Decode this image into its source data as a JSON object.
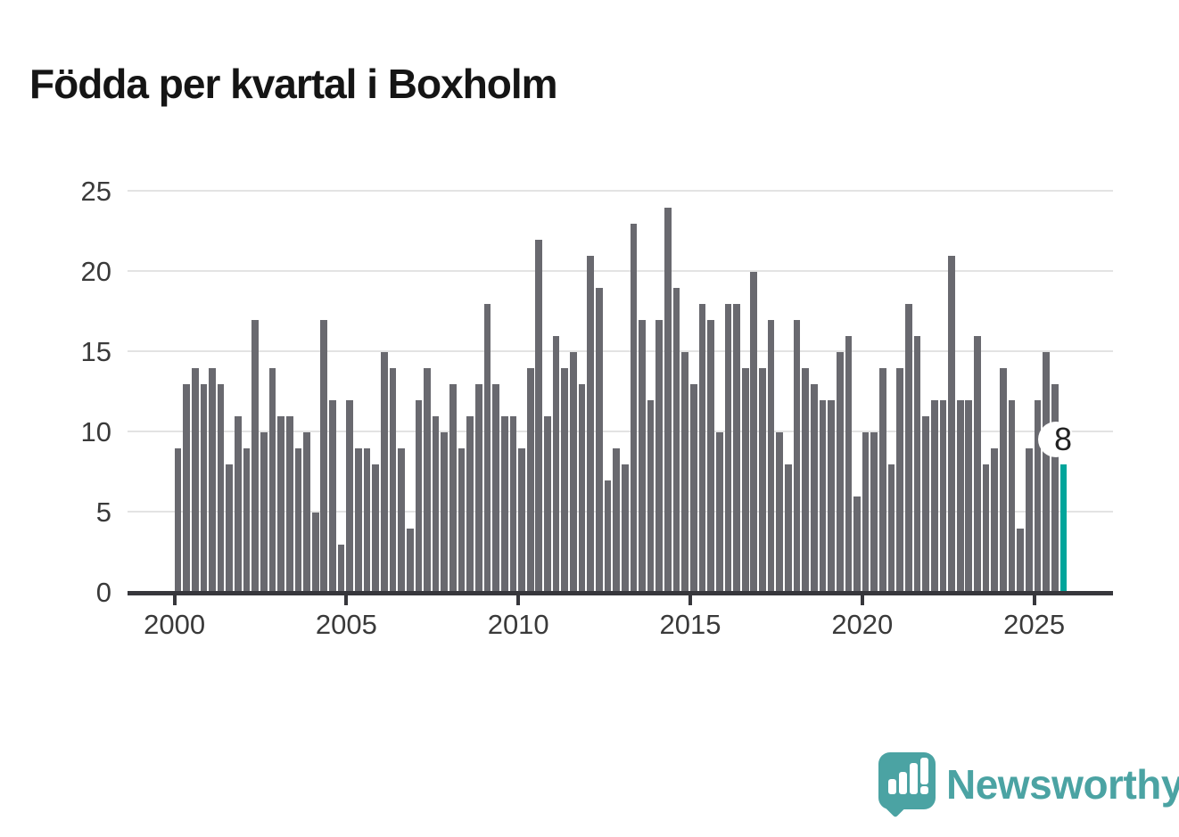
{
  "title": "Födda per kvartal i Boxholm",
  "brand": {
    "name": "Newsworthy"
  },
  "chart_data": {
    "type": "bar",
    "title": "Födda per kvartal i Boxholm",
    "x_labels": [
      "2000Q1",
      "2000Q2",
      "2000Q3",
      "2000Q4",
      "2001Q1",
      "2001Q2",
      "2001Q3",
      "2001Q4",
      "2002Q1",
      "2002Q2",
      "2002Q3",
      "2002Q4",
      "2003Q1",
      "2003Q2",
      "2003Q3",
      "2003Q4",
      "2004Q1",
      "2004Q2",
      "2004Q3",
      "2004Q4",
      "2005Q1",
      "2005Q2",
      "2005Q3",
      "2005Q4",
      "2006Q1",
      "2006Q2",
      "2006Q3",
      "2006Q4",
      "2007Q1",
      "2007Q2",
      "2007Q3",
      "2007Q4",
      "2008Q1",
      "2008Q2",
      "2008Q3",
      "2008Q4",
      "2009Q1",
      "2009Q2",
      "2009Q3",
      "2009Q4",
      "2010Q1",
      "2010Q2",
      "2010Q3",
      "2010Q4",
      "2011Q1",
      "2011Q2",
      "2011Q3",
      "2011Q4",
      "2012Q1",
      "2012Q2",
      "2012Q3",
      "2012Q4",
      "2013Q1",
      "2013Q2",
      "2013Q3",
      "2013Q4",
      "2014Q1",
      "2014Q2",
      "2014Q3",
      "2014Q4",
      "2015Q1",
      "2015Q2",
      "2015Q3",
      "2015Q4",
      "2016Q1",
      "2016Q2",
      "2016Q3",
      "2016Q4",
      "2017Q1",
      "2017Q2",
      "2017Q3",
      "2017Q4",
      "2018Q1",
      "2018Q2",
      "2018Q3",
      "2018Q4",
      "2019Q1",
      "2019Q2",
      "2019Q3",
      "2019Q4",
      "2020Q1",
      "2020Q2",
      "2020Q3",
      "2020Q4",
      "2021Q1",
      "2021Q2",
      "2021Q3",
      "2021Q4",
      "2022Q1",
      "2022Q2",
      "2022Q3",
      "2022Q4",
      "2023Q1",
      "2023Q2",
      "2023Q3",
      "2023Q4",
      "2024Q1",
      "2024Q2",
      "2024Q3",
      "2024Q4",
      "2025Q1",
      "2025Q2",
      "2025Q3",
      "2025Q4"
    ],
    "values": [
      9,
      13,
      14,
      13,
      14,
      13,
      8,
      11,
      9,
      17,
      10,
      14,
      11,
      11,
      9,
      10,
      5,
      17,
      12,
      3,
      12,
      9,
      9,
      8,
      15,
      14,
      9,
      4,
      12,
      14,
      11,
      10,
      13,
      9,
      11,
      13,
      18,
      13,
      11,
      11,
      9,
      14,
      22,
      11,
      16,
      14,
      15,
      13,
      21,
      19,
      7,
      9,
      8,
      23,
      17,
      12,
      17,
      24,
      19,
      15,
      13,
      18,
      17,
      10,
      18,
      18,
      14,
      20,
      14,
      17,
      10,
      8,
      17,
      14,
      13,
      12,
      12,
      15,
      16,
      6,
      10,
      10,
      14,
      8,
      14,
      18,
      16,
      11,
      12,
      12,
      21,
      12,
      12,
      16,
      8,
      9,
      14,
      12,
      4,
      9,
      12,
      15,
      13,
      8
    ],
    "x_tick_labels": [
      "2000",
      "2005",
      "2010",
      "2015",
      "2020",
      "2025"
    ],
    "y_tick_labels": [
      "0",
      "5",
      "10",
      "15",
      "20",
      "25"
    ],
    "y_ticks": [
      0,
      5,
      10,
      15,
      20,
      25
    ],
    "ylim": [
      0,
      25
    ],
    "grid": true,
    "legend": "none",
    "highlight_last_bar": true,
    "last_value_label": "8",
    "bar_color": "#69696f",
    "highlight_color": "#00a59b",
    "grid_color": "#e3e3e3",
    "axis_color": "#37373c",
    "label_color": "#3a3a3a"
  }
}
